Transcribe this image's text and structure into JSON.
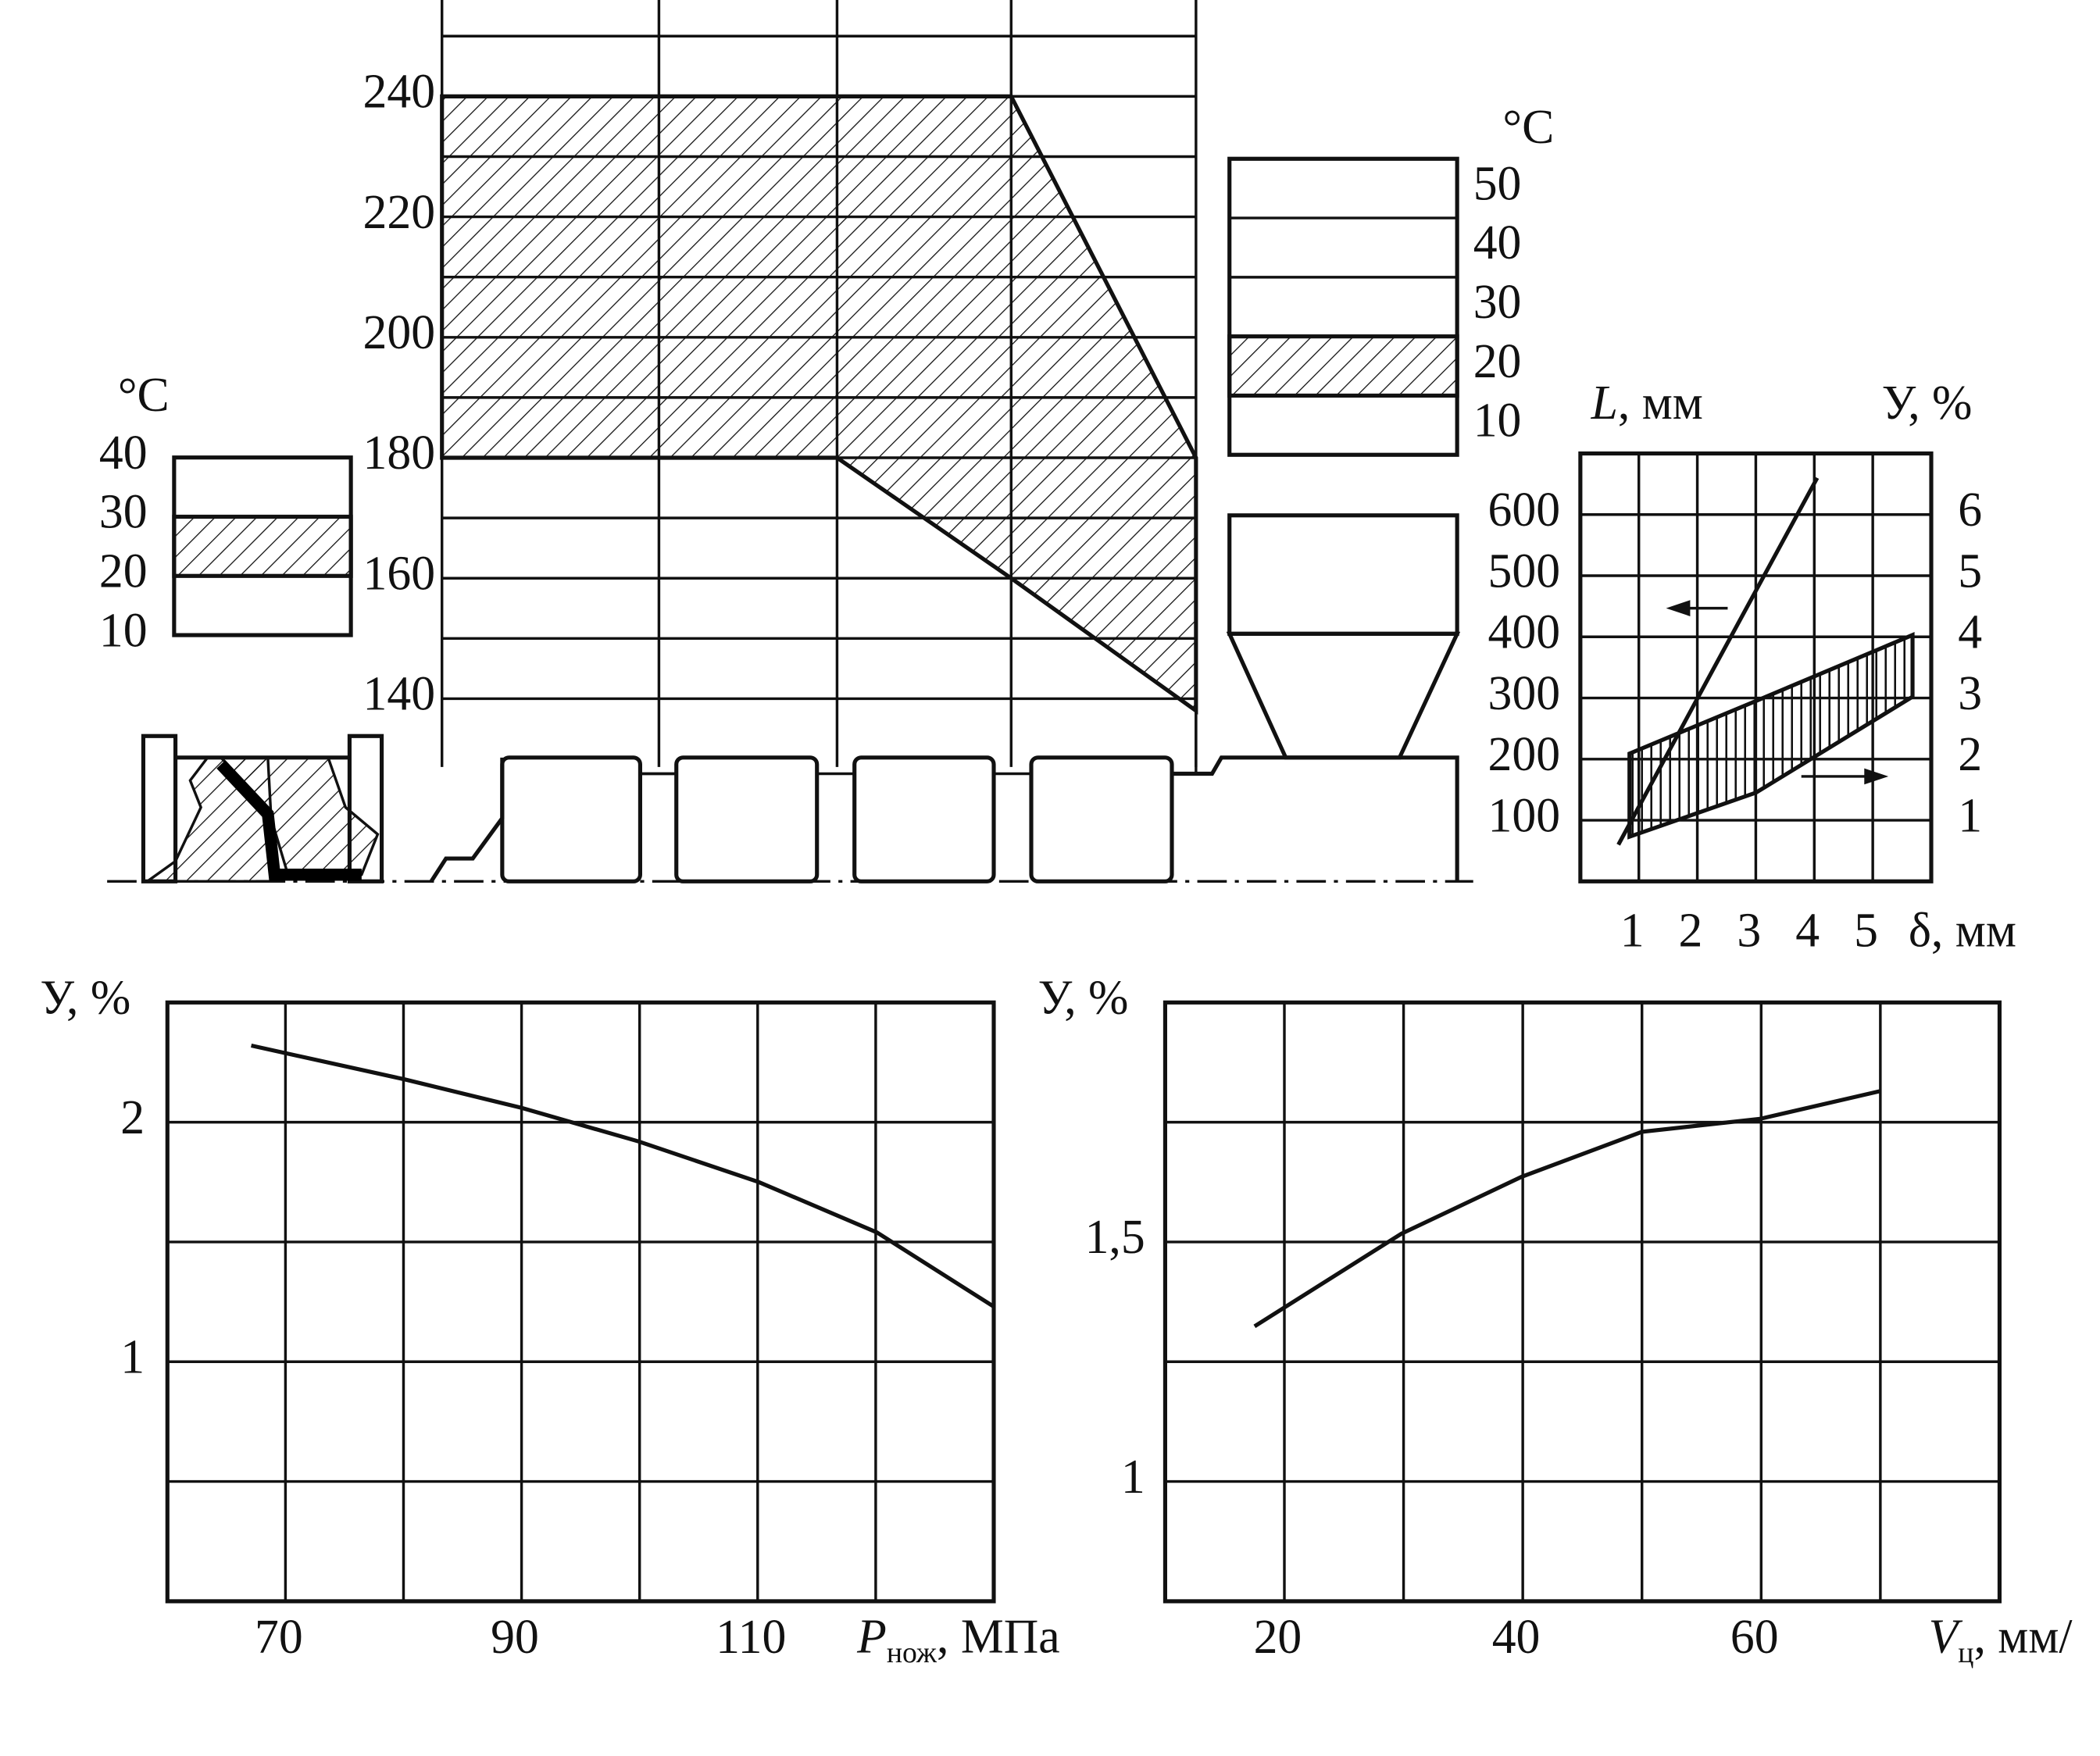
{
  "chart_data": [
    {
      "type": "zone-band",
      "ylim": [
        130,
        256
      ],
      "yticks": [
        140,
        160,
        180,
        200,
        220,
        240
      ],
      "minor_yticks": [
        150,
        170,
        190,
        210,
        230,
        250
      ],
      "grid": true,
      "categories": [
        null,
        null,
        null,
        null,
        null
      ],
      "upper": [
        240,
        240,
        240,
        240,
        180
      ],
      "lower": [
        180,
        180,
        180,
        160,
        138
      ]
    },
    {
      "type": "range-box",
      "ylabel": "°C",
      "ylim": [
        10,
        40
      ],
      "yticks": [
        40,
        30,
        20,
        10
      ],
      "grid": true,
      "range": [
        20,
        30
      ]
    },
    {
      "type": "range-box",
      "ylabel": "°C",
      "ylim": [
        5,
        55
      ],
      "yticks": [
        50,
        40,
        30,
        20,
        10
      ],
      "minor_yticks": [
        15,
        25,
        35,
        45
      ],
      "grid": false,
      "range": [
        15,
        25
      ]
    },
    {
      "type": "dual-axis",
      "ylabel_symbol": "L",
      "ylabel_unit": ", мм",
      "y2label": "У, %",
      "xlabel": "δ, мм",
      "xlim": [
        0,
        6
      ],
      "xticks": [
        1,
        2,
        3,
        4,
        5
      ],
      "ylim": [
        0,
        700
      ],
      "yticks": [
        100,
        200,
        300,
        400,
        500,
        600
      ],
      "y2lim": [
        0,
        7
      ],
      "y2ticks": [
        1,
        2,
        3,
        4,
        5,
        6
      ],
      "grid": true,
      "series": [
        {
          "x": [
            0.65,
            2.3,
            4.05
          ],
          "values": [
            60,
            352,
            660
          ]
        }
      ],
      "band": {
        "axis": "y2",
        "x": [
          0.84,
          3.0,
          5.68
        ],
        "lower": [
          0.73,
          1.45,
          3.02
        ],
        "upper": [
          2.09,
          2.95,
          4.03
        ]
      }
    },
    {
      "type": "line",
      "ylabel": "У, %",
      "xlabel_symbol": "P",
      "xlabel_sub": "нож",
      "xlabel_unit": ", МПа",
      "xlim": [
        60,
        130
      ],
      "xticks": [
        70,
        90,
        110
      ],
      "minor_xticks": [
        80,
        100,
        120
      ],
      "ylim": [
        0,
        2.5
      ],
      "yticks": [
        1,
        2
      ],
      "minor_yticks": [
        0.5,
        1.5
      ],
      "grid": true,
      "series": [
        {
          "x": [
            67.1,
            80,
            90,
            99.9,
            110.1,
            120.1,
            130
          ],
          "values": [
            2.32,
            2.18,
            2.06,
            1.92,
            1.75,
            1.54,
            1.23
          ]
        }
      ]
    },
    {
      "type": "line",
      "ylabel": "У, %",
      "xlabel_symbol": "V",
      "xlabel_sub": "ц",
      "xlabel_unit": ", мм/",
      "xlim": [
        10,
        80
      ],
      "xticks": [
        20,
        40,
        60
      ],
      "minor_xticks": [
        30,
        50,
        70
      ],
      "ylim": [
        0.75,
        2
      ],
      "yticks": [
        {
          "value": 1.5,
          "label": "1,5"
        },
        1
      ],
      "minor_yticks": [
        1.25,
        1.75
      ],
      "grid": true,
      "series": [
        {
          "x": [
            17.5,
            29.8,
            39.9,
            50,
            59.9,
            70
          ],
          "values": [
            1.324,
            1.517,
            1.636,
            1.73,
            1.757,
            1.815
          ]
        }
      ]
    }
  ]
}
